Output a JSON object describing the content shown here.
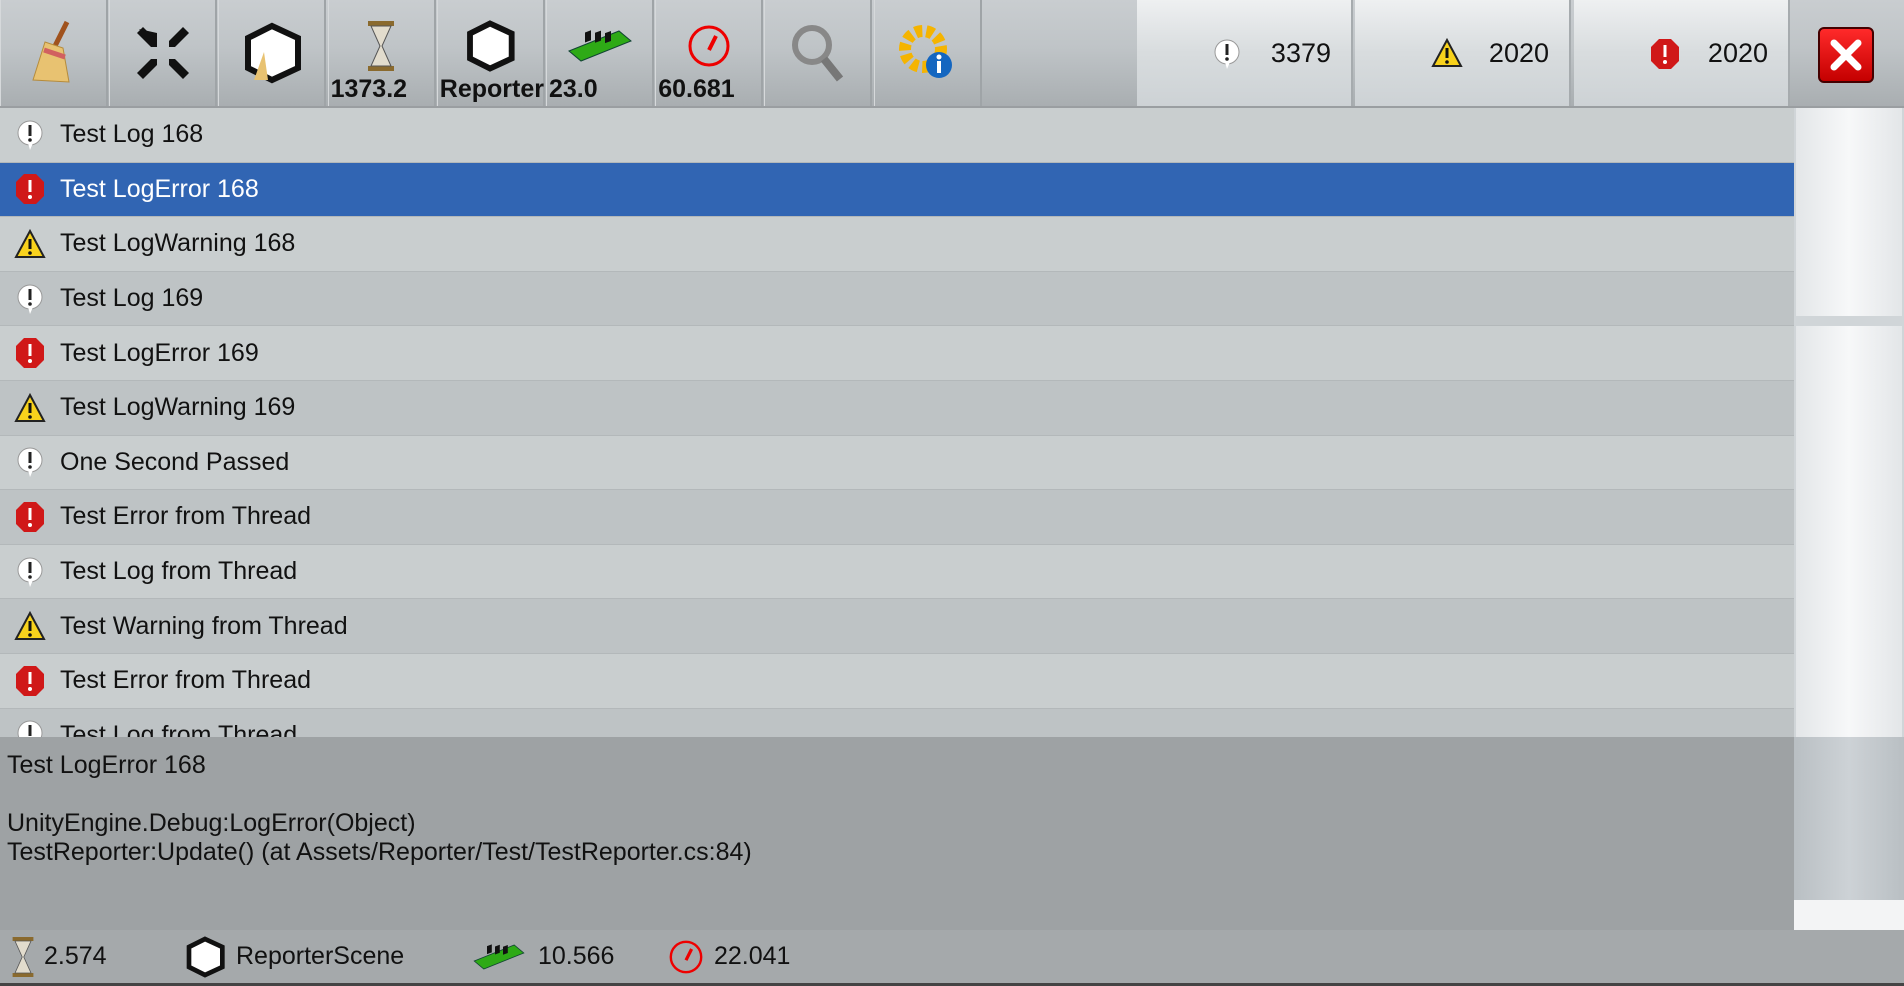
{
  "toolbar": {
    "buttons": [
      {
        "name": "clear",
        "icon": "broom-icon"
      },
      {
        "name": "collapse",
        "icon": "collapse-arrows-icon"
      },
      {
        "name": "clear-on-new-scene",
        "icon": "unity-broom-icon"
      },
      {
        "name": "time",
        "icon": "hourglass-icon",
        "value": "1373.2"
      },
      {
        "name": "scene",
        "icon": "unity-logo-icon",
        "value": "Reporter"
      },
      {
        "name": "memory",
        "icon": "memory-chip-icon",
        "value": "23.0"
      },
      {
        "name": "fps",
        "icon": "speedometer-icon",
        "value": "60.681"
      },
      {
        "name": "search",
        "icon": "search-icon"
      },
      {
        "name": "info",
        "icon": "gear-info-icon"
      }
    ],
    "counts": {
      "log": "3379",
      "warning": "2020",
      "error": "2020"
    }
  },
  "logs": [
    {
      "type": "log",
      "text": "Test Log 168"
    },
    {
      "type": "error",
      "text": "Test LogError 168",
      "selected": true
    },
    {
      "type": "warning",
      "text": "Test LogWarning 168"
    },
    {
      "type": "log",
      "text": "Test Log 169"
    },
    {
      "type": "error",
      "text": "Test LogError 169"
    },
    {
      "type": "warning",
      "text": "Test LogWarning 169"
    },
    {
      "type": "log",
      "text": "One Second Passed"
    },
    {
      "type": "error",
      "text": "Test Error from Thread"
    },
    {
      "type": "log",
      "text": "Test Log from Thread"
    },
    {
      "type": "warning",
      "text": "Test Warning from Thread"
    },
    {
      "type": "error",
      "text": "Test Error from Thread"
    },
    {
      "type": "log",
      "text": "Test Log from Thread"
    }
  ],
  "detail": {
    "title": "Test LogError 168",
    "stack": [
      "UnityEngine.Debug:LogError(Object)",
      "TestReporter:Update() (at Assets/Reporter/Test/TestReporter.cs:84)"
    ]
  },
  "status": {
    "time": "2.574",
    "scene": "ReporterScene",
    "memory": "10.566",
    "fps": "22.041"
  },
  "colors": {
    "selected": "#3165b3",
    "error": "#d01818",
    "warning": "#f5d320",
    "close": "#e00000"
  }
}
